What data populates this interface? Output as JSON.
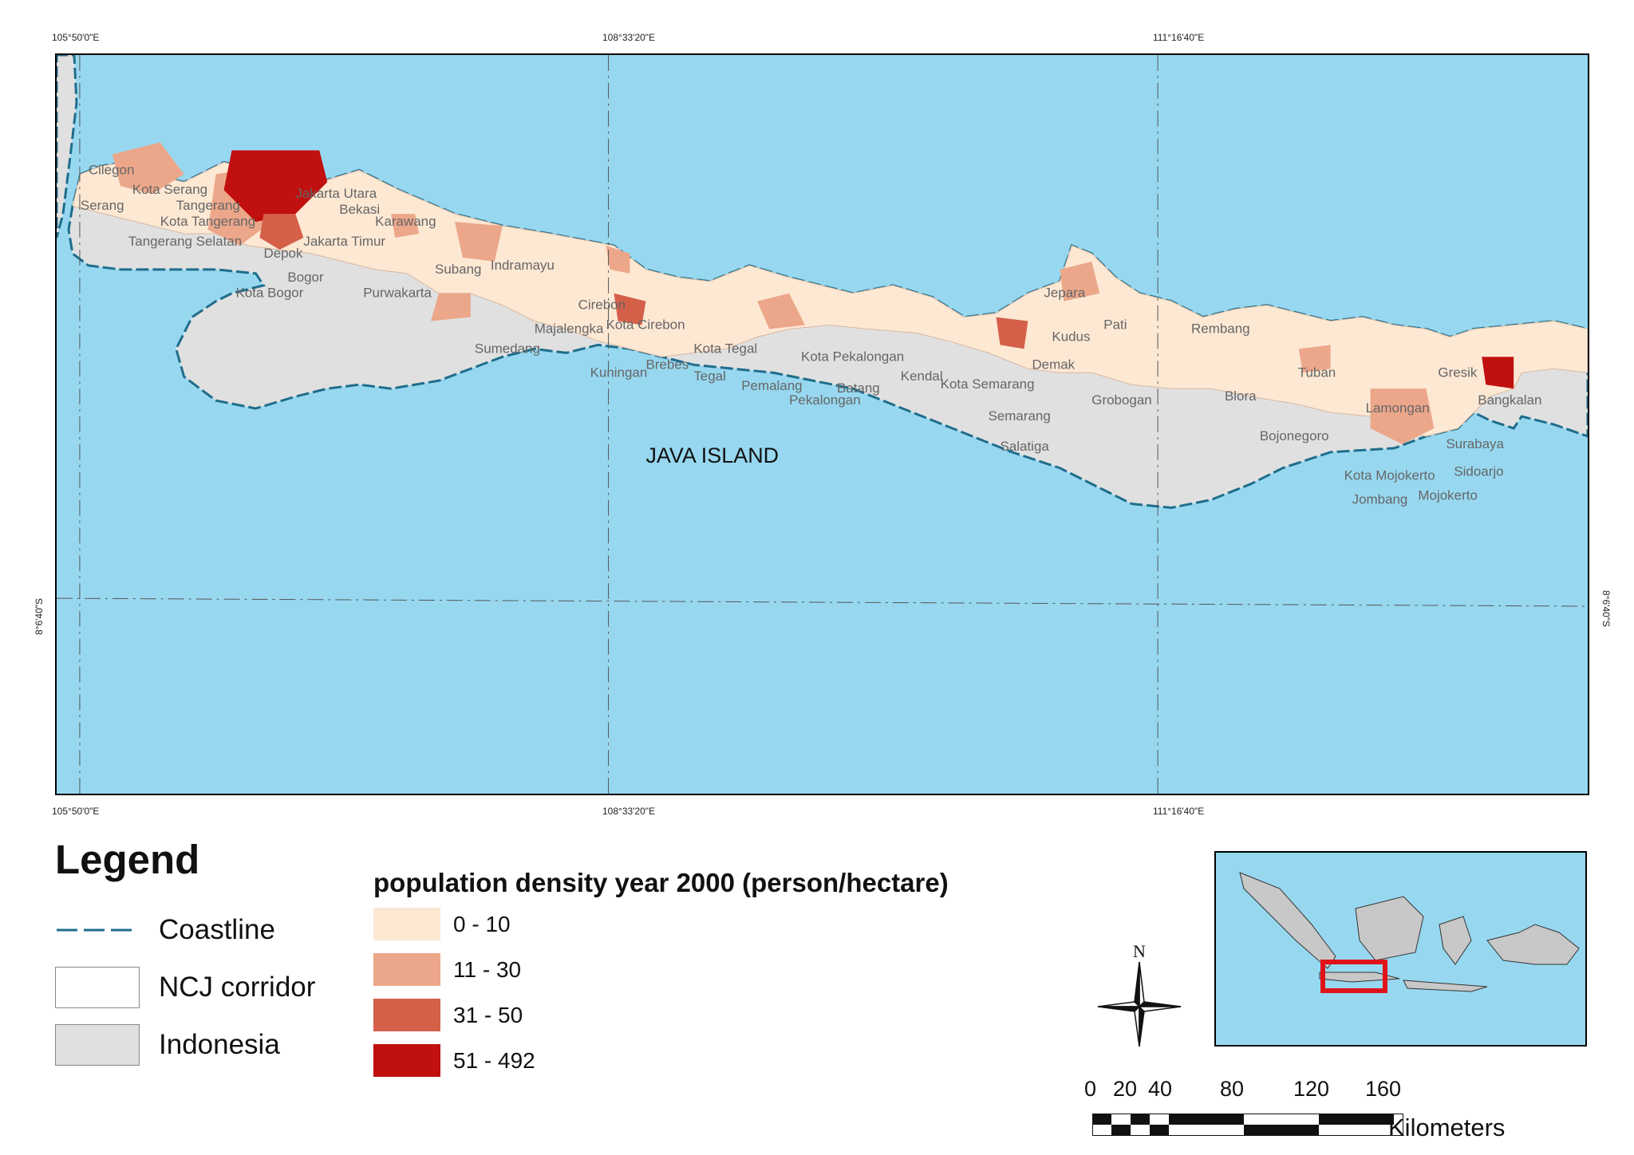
{
  "graticule": {
    "lon_labels": [
      "105°50'0\"E",
      "108°33'20\"E",
      "111°16'40\"E"
    ],
    "lat_label": "8°6'40\"S"
  },
  "map": {
    "island_label": "JAVA ISLAND",
    "places": [
      "Cilegon",
      "Kota Serang",
      "Serang",
      "Tangerang",
      "Kota Tangerang",
      "Tangerang Selatan",
      "Jakarta Utara",
      "Bekasi",
      "Jakarta Timur",
      "Depok",
      "Bogor",
      "Kota Bogor",
      "Karawang",
      "Purwakarta",
      "Subang",
      "Indramayu",
      "Cirebon",
      "Kota Cirebon",
      "Majalengka",
      "Sumedang",
      "Kuningan",
      "Brebes",
      "Kota Tegal",
      "Tegal",
      "Pemalang",
      "Kota Pekalongan",
      "Pekalongan",
      "Batang",
      "Kendal",
      "Kota Semarang",
      "Semarang",
      "Salatiga",
      "Demak",
      "Kudus",
      "Jepara",
      "Pati",
      "Grobogan",
      "Rembang",
      "Blora",
      "Tuban",
      "Bojonegoro",
      "Lamongan",
      "Gresik",
      "Bangkalan",
      "Surabaya",
      "Sidoarjo",
      "Mojokerto",
      "Kota Mojokerto",
      "Jombang"
    ],
    "colors": {
      "sea": "#97d8f0",
      "land": "#e0e0e0",
      "coast": "#1f6d8c"
    }
  },
  "legend": {
    "title": "Legend",
    "items": [
      {
        "label": "Coastline"
      },
      {
        "label": "NCJ corridor"
      },
      {
        "label": "Indonesia"
      }
    ]
  },
  "density_legend": {
    "title": "population density year 2000 (person/hectare)",
    "classes": [
      {
        "label": "0 - 10",
        "color": "#fde8d4"
      },
      {
        "label": "11 - 30",
        "color": "#eca78a"
      },
      {
        "label": "31 - 50",
        "color": "#d4604a"
      },
      {
        "label": "51 - 492",
        "color": "#c0100f"
      }
    ]
  },
  "north_arrow": {
    "label": "N"
  },
  "scalebar": {
    "ticks": [
      "0",
      "20",
      "40",
      "80",
      "120",
      "160"
    ],
    "unit": "Kilometers"
  }
}
